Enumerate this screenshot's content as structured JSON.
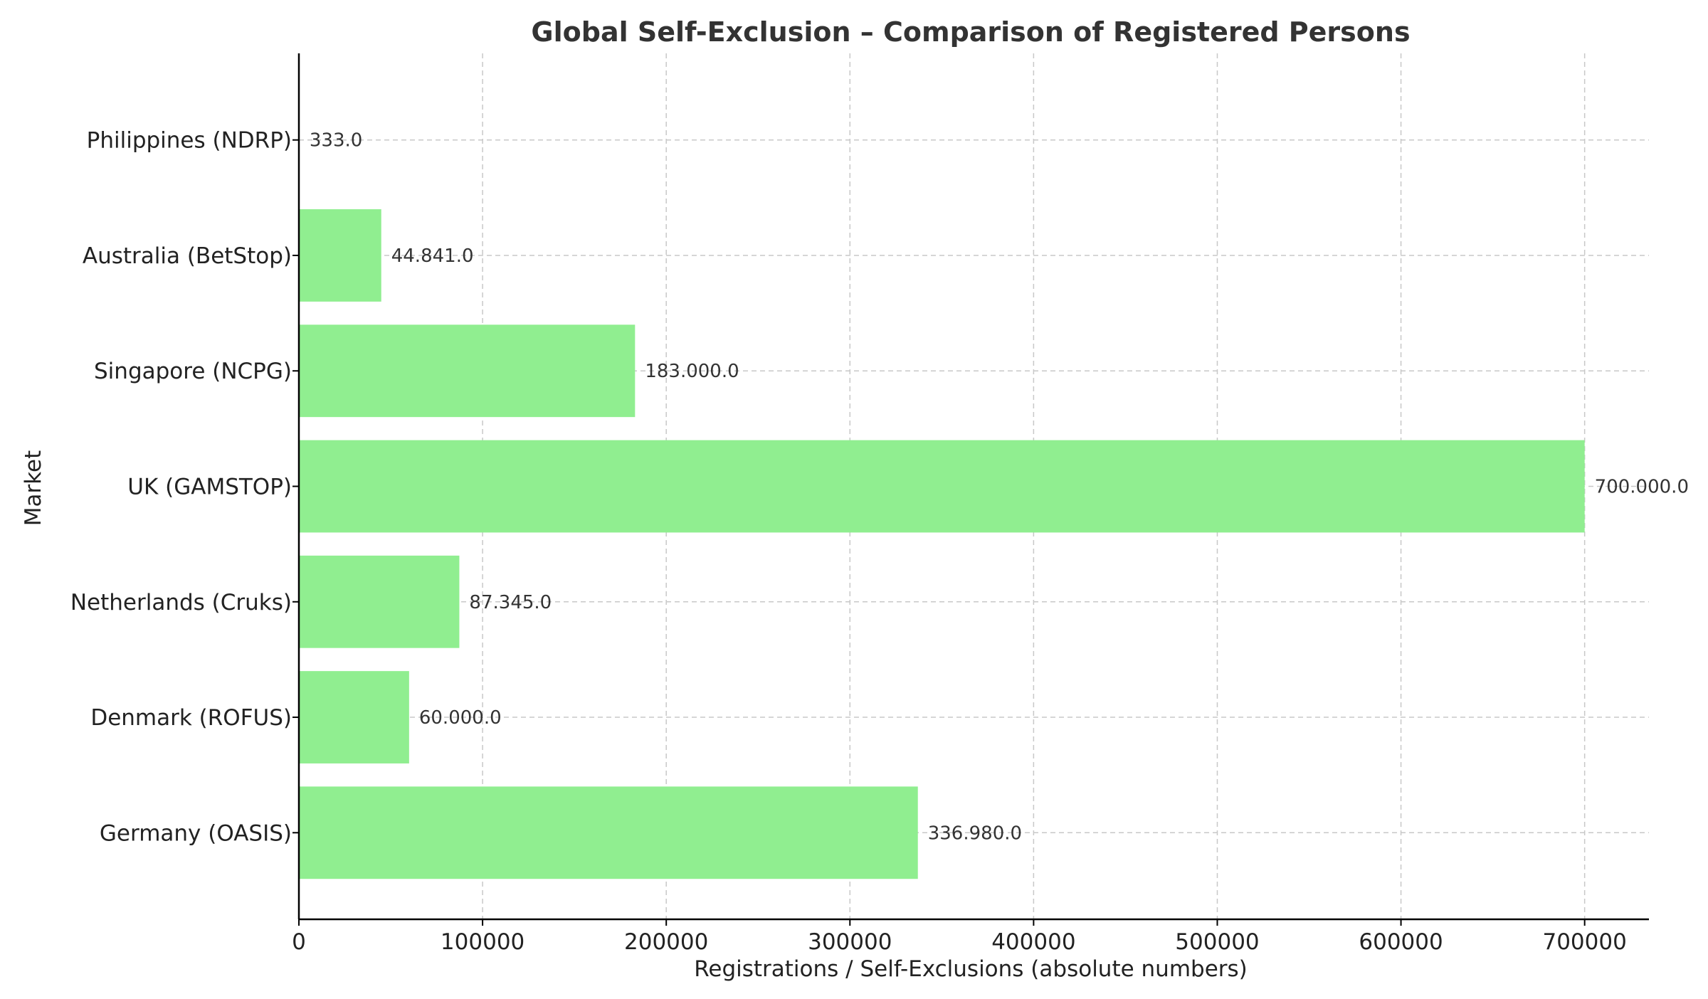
{
  "chart_data": {
    "type": "bar",
    "orientation": "horizontal",
    "title": "Global Self-Exclusion – Comparison of Registered Persons",
    "xlabel": "Registrations / Self-Exclusions (absolute numbers)",
    "ylabel": "Market",
    "xlim": [
      0,
      735000
    ],
    "x_ticks": [
      "0",
      "100000",
      "200000",
      "300000",
      "400000",
      "500000",
      "600000",
      "700000"
    ],
    "x_tick_values": [
      0,
      100000,
      200000,
      300000,
      400000,
      500000,
      600000,
      700000
    ],
    "grid": true,
    "bar_color": "#90ee90",
    "categories": [
      "Germany (OASIS)",
      "Denmark (ROFUS)",
      "Netherlands (Cruks)",
      "UK (GAMSTOP)",
      "Singapore (NCPG)",
      "Australia (BetStop)",
      "Philippines (NDRP)"
    ],
    "values": [
      336980,
      60000,
      87345,
      700000,
      183000,
      44841,
      333
    ],
    "data_labels": [
      "336.980.0",
      "60.000.0",
      "87.345.0",
      "700.000.0",
      "183.000.0",
      "44.841.0",
      "333.0"
    ]
  }
}
